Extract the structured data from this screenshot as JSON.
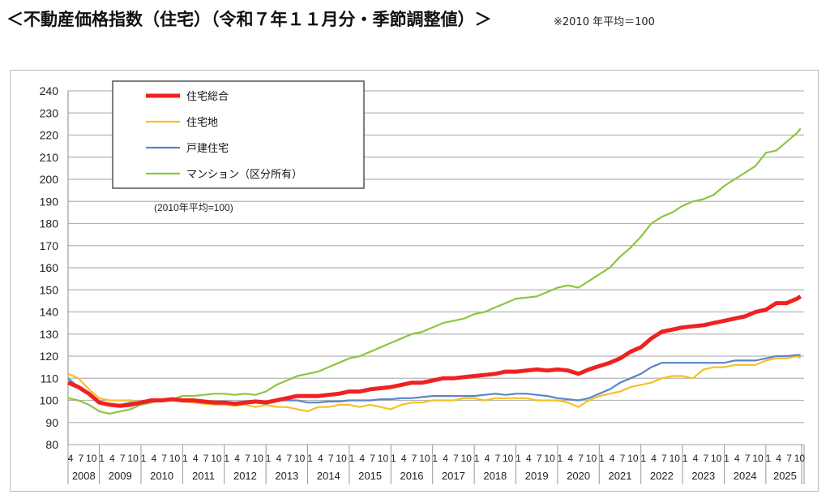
{
  "chart_data": {
    "type": "line",
    "title": "＜不動産価格指数（住宅）（令和７年１１月分・季節調整値）＞",
    "subtitle": "※2010 年平均＝100",
    "base_note": "(2010年平均=100)",
    "ylim": [
      80,
      240
    ],
    "yticks": [
      80,
      90,
      100,
      110,
      120,
      130,
      140,
      150,
      160,
      170,
      180,
      190,
      200,
      210,
      220,
      230,
      240
    ],
    "grid": true,
    "legend_position": "top-left",
    "x_start": "2008-04",
    "month_tick_labels": [
      "4",
      "7",
      "10",
      "1"
    ],
    "years": [
      "2008",
      "2009",
      "2010",
      "2011",
      "2012",
      "2013",
      "2014",
      "2015",
      "2016",
      "2017",
      "2018",
      "2019",
      "2020",
      "2021",
      "2022",
      "2023",
      "2024",
      "2025"
    ],
    "x": [
      "2008-04",
      "2008-07",
      "2008-10",
      "2009-01",
      "2009-04",
      "2009-07",
      "2009-10",
      "2010-01",
      "2010-04",
      "2010-07",
      "2010-10",
      "2011-01",
      "2011-04",
      "2011-07",
      "2011-10",
      "2012-01",
      "2012-04",
      "2012-07",
      "2012-10",
      "2013-01",
      "2013-04",
      "2013-07",
      "2013-10",
      "2014-01",
      "2014-04",
      "2014-07",
      "2014-10",
      "2015-01",
      "2015-04",
      "2015-07",
      "2015-10",
      "2016-01",
      "2016-04",
      "2016-07",
      "2016-10",
      "2017-01",
      "2017-04",
      "2017-07",
      "2017-10",
      "2018-01",
      "2018-04",
      "2018-07",
      "2018-10",
      "2019-01",
      "2019-04",
      "2019-07",
      "2019-10",
      "2020-01",
      "2020-04",
      "2020-07",
      "2020-10",
      "2021-01",
      "2021-04",
      "2021-07",
      "2021-10",
      "2022-01",
      "2022-04",
      "2022-07",
      "2022-10",
      "2023-01",
      "2023-04",
      "2023-07",
      "2023-10",
      "2024-01",
      "2024-04",
      "2024-07",
      "2024-10",
      "2025-01",
      "2025-04",
      "2025-07",
      "2025-10",
      "2025-11"
    ],
    "series": [
      {
        "name": "住宅総合",
        "color": "#ee2222",
        "values": [
          108,
          106,
          103,
          99,
          98,
          97.5,
          98,
          99,
          100,
          100,
          100.5,
          100,
          100,
          99.5,
          99,
          99,
          98.5,
          99,
          99.5,
          99,
          100,
          101,
          102,
          102,
          102,
          102.5,
          103,
          104,
          104,
          105,
          105.5,
          106,
          107,
          108,
          108,
          109,
          110,
          110,
          110.5,
          111,
          111.5,
          112,
          113,
          113,
          113.5,
          114,
          113.5,
          114,
          113.5,
          112,
          114,
          115.5,
          117,
          119,
          122,
          124,
          128,
          131,
          132,
          133,
          133.5,
          134,
          135,
          136,
          137,
          138,
          140,
          141,
          144,
          144,
          146,
          147
        ]
      },
      {
        "name": "住宅地",
        "color": "#f5c125",
        "values": [
          112,
          110,
          105,
          101,
          100,
          100,
          100,
          99,
          100,
          100,
          100,
          99.5,
          99,
          98.5,
          98,
          98,
          97.5,
          98,
          97,
          98,
          97,
          97,
          96,
          95,
          97,
          97,
          98,
          98,
          97,
          98,
          97,
          96,
          98,
          99,
          99,
          100,
          100,
          100,
          101,
          101,
          100,
          101,
          101,
          101,
          101,
          100,
          100,
          100,
          99,
          97,
          100,
          102,
          103,
          104,
          106,
          107,
          108,
          110,
          111,
          111,
          110,
          114,
          115,
          115,
          116,
          116,
          116,
          118,
          119,
          119,
          120,
          119
        ]
      },
      {
        "name": "戸建住宅",
        "color": "#5b85c6",
        "values": [
          110,
          106,
          103,
          99,
          98,
          98,
          99,
          99,
          100,
          100,
          100,
          100,
          100,
          100,
          99.5,
          99,
          98.5,
          98.5,
          99,
          99,
          100,
          100,
          100,
          99,
          99,
          99.5,
          99.5,
          100,
          100,
          100,
          100.5,
          100.5,
          101,
          101,
          101.5,
          102,
          102,
          102,
          102,
          102,
          102.5,
          103,
          102.5,
          103,
          103,
          102.5,
          102,
          101,
          100.5,
          100,
          101,
          103,
          105,
          108,
          110,
          112,
          115,
          117,
          117,
          117,
          117,
          117,
          117,
          117,
          118,
          118,
          118,
          119,
          120,
          120,
          120.5,
          120.5
        ]
      },
      {
        "name": "マンション（区分所有）",
        "color": "#8cc63e",
        "values": [
          101,
          100,
          98,
          95,
          94,
          95,
          96,
          98,
          99,
          100,
          100.5,
          102,
          102,
          102.5,
          103,
          103,
          102.5,
          103,
          102.5,
          104,
          107,
          109,
          111,
          112,
          113,
          115,
          117,
          119,
          120,
          122,
          124,
          126,
          128,
          130,
          131,
          133,
          135,
          136,
          137,
          139,
          140,
          142,
          144,
          146,
          146.5,
          147,
          149,
          151,
          152,
          151,
          154,
          157,
          160,
          165,
          169,
          174,
          180,
          183,
          185,
          188,
          190,
          191,
          193,
          197,
          200,
          203,
          206,
          212,
          213,
          217,
          221,
          223
        ]
      }
    ]
  }
}
